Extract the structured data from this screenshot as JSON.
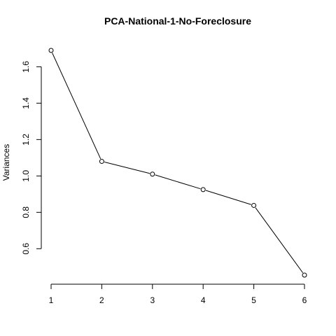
{
  "chart_data": {
    "type": "line",
    "title": "PCA-National-1-No-Foreclosure",
    "xlabel": "",
    "ylabel": "Variances",
    "x": [
      1,
      2,
      3,
      4,
      5,
      6
    ],
    "values": [
      1.69,
      1.08,
      1.01,
      0.925,
      0.838,
      0.455
    ],
    "xticks": [
      "1",
      "2",
      "3",
      "4",
      "5",
      "6"
    ],
    "yticks": [
      "0.6",
      "0.8",
      "1.0",
      "1.2",
      "1.4",
      "1.6"
    ],
    "xlim": [
      1,
      6
    ],
    "ylim": [
      0.455,
      1.69
    ],
    "marker": "open-circle",
    "grid": false,
    "legend": "none"
  }
}
